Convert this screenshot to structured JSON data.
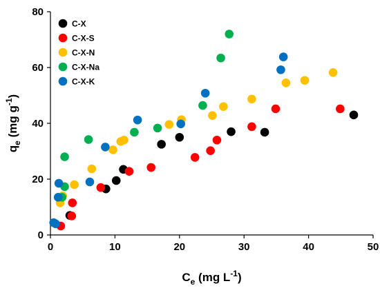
{
  "chart_data": {
    "type": "scatter",
    "xlabel": {
      "main": "C",
      "sub": "e",
      "unit_pre": " (mg L",
      "sup": "-1",
      "unit_post": ")"
    },
    "ylabel": {
      "main": "q",
      "sub": "e",
      "unit_pre": " (mg g",
      "sup": "-1",
      "unit_post": ")"
    },
    "xlim": [
      0,
      50
    ],
    "ylim": [
      0,
      80
    ],
    "x_ticks": [
      0,
      10,
      20,
      30,
      40,
      50
    ],
    "y_ticks": [
      0,
      20,
      40,
      60,
      80
    ],
    "x_tick_labels": [
      "0",
      "10",
      "20",
      "30",
      "40",
      "50"
    ],
    "y_tick_labels": [
      "0",
      "20",
      "40",
      "60",
      "80"
    ],
    "grid": false,
    "legend_position": "top-left",
    "series": [
      {
        "name": "C-X",
        "color": "#000000",
        "points": [
          [
            3.0,
            7.0
          ],
          [
            8.6,
            16.5
          ],
          [
            10.2,
            19.5
          ],
          [
            11.3,
            23.5
          ],
          [
            17.2,
            32.5
          ],
          [
            20.0,
            35.0
          ],
          [
            28.0,
            37.0
          ],
          [
            33.2,
            36.8
          ],
          [
            47.0,
            43.0
          ]
        ]
      },
      {
        "name": "C-X-S",
        "color": "#ff0000",
        "points": [
          [
            1.6,
            3.2
          ],
          [
            3.3,
            6.8
          ],
          [
            3.4,
            11.5
          ],
          [
            7.8,
            17.0
          ],
          [
            12.2,
            22.8
          ],
          [
            15.6,
            24.2
          ],
          [
            22.4,
            27.8
          ],
          [
            24.8,
            30.2
          ],
          [
            25.8,
            34.0
          ],
          [
            31.2,
            38.8
          ],
          [
            34.9,
            45.2
          ],
          [
            44.9,
            45.2
          ]
        ]
      },
      {
        "name": "C-X-N",
        "color": "#ffc000",
        "points": [
          [
            1.5,
            11.5
          ],
          [
            1.9,
            14.0
          ],
          [
            3.7,
            18.0
          ],
          [
            6.4,
            23.7
          ],
          [
            9.7,
            30.5
          ],
          [
            10.9,
            33.5
          ],
          [
            11.4,
            34.0
          ],
          [
            18.4,
            39.6
          ],
          [
            20.3,
            41.3
          ],
          [
            25.1,
            42.8
          ],
          [
            26.8,
            46.0
          ],
          [
            31.2,
            48.7
          ],
          [
            36.5,
            54.5
          ],
          [
            39.4,
            55.4
          ],
          [
            43.8,
            58.2
          ]
        ]
      },
      {
        "name": "C-X-Na",
        "color": "#00b050",
        "points": [
          [
            1.8,
            13.5
          ],
          [
            2.2,
            17.3
          ],
          [
            2.2,
            28.0
          ],
          [
            5.9,
            34.2
          ],
          [
            13.0,
            36.8
          ],
          [
            16.6,
            38.3
          ],
          [
            23.6,
            46.4
          ],
          [
            26.4,
            63.4
          ],
          [
            27.7,
            72.0
          ]
        ]
      },
      {
        "name": "C-X-K",
        "color": "#0070c0",
        "points": [
          [
            0.5,
            4.4
          ],
          [
            0.8,
            4.0
          ],
          [
            1.2,
            13.5
          ],
          [
            1.3,
            18.5
          ],
          [
            6.1,
            19.0
          ],
          [
            8.5,
            31.5
          ],
          [
            13.5,
            41.2
          ],
          [
            20.2,
            39.8
          ],
          [
            24.0,
            50.8
          ],
          [
            35.7,
            59.2
          ],
          [
            36.1,
            63.8
          ]
        ]
      }
    ]
  }
}
